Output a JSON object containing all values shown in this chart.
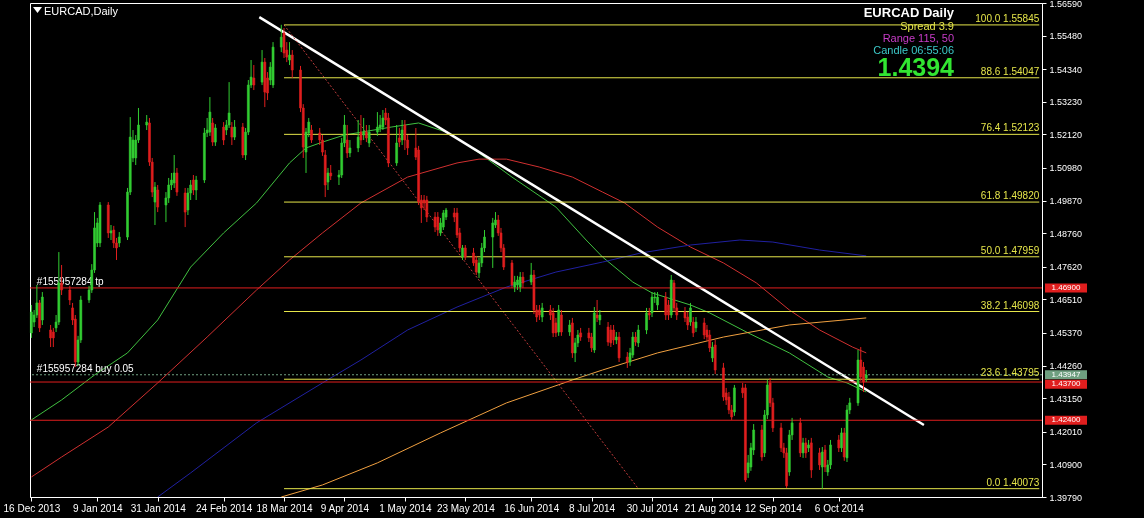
{
  "chart_data": {
    "type": "candlestick",
    "title": "EURCAD,Daily",
    "xlim": [
      "2013-12-15T12:00",
      "2014-12-19"
    ],
    "ylim": [
      1.3979,
      1.5659
    ],
    "xticks": [
      {
        "value": "2013-12-16",
        "label": "16 Dec 2013"
      },
      {
        "value": "2014-01-09",
        "label": "9 Jan 2014"
      },
      {
        "value": "2014-01-31",
        "label": "31 Jan 2014"
      },
      {
        "value": "2014-02-24",
        "label": "24 Feb 2014"
      },
      {
        "value": "2014-03-18",
        "label": "18 Mar 2014"
      },
      {
        "value": "2014-04-09",
        "label": "9 Apr 2014"
      },
      {
        "value": "2014-05-01",
        "label": "1 May 2014"
      },
      {
        "value": "2014-05-23",
        "label": "23 May 2014"
      },
      {
        "value": "2014-06-16",
        "label": "16 Jun 2014"
      },
      {
        "value": "2014-07-08",
        "label": "8 Jul 2014"
      },
      {
        "value": "2014-07-30",
        "label": "30 Jul 2014"
      },
      {
        "value": "2014-08-21",
        "label": "21 Aug 2014"
      },
      {
        "value": "2014-09-12",
        "label": "12 Sep 2014"
      },
      {
        "value": "2014-10-06",
        "label": "6 Oct 2014"
      }
    ],
    "yticks": [
      {
        "value": 1.5659,
        "label": "1.56590"
      },
      {
        "value": 1.5548,
        "label": "1.55480"
      },
      {
        "value": 1.5434,
        "label": "1.54340"
      },
      {
        "value": 1.5323,
        "label": "1.53230"
      },
      {
        "value": 1.5212,
        "label": "1.52120"
      },
      {
        "value": 1.5098,
        "label": "1.50980"
      },
      {
        "value": 1.4987,
        "label": "1.49870"
      },
      {
        "value": 1.4876,
        "label": "1.48760"
      },
      {
        "value": 1.4762,
        "label": "1.47620"
      },
      {
        "value": 1.4651,
        "label": "1.46510"
      },
      {
        "value": 1.4537,
        "label": "1.45370"
      },
      {
        "value": 1.4426,
        "label": "1.44260"
      },
      {
        "value": 1.4315,
        "label": "1.43150"
      },
      {
        "value": 1.4201,
        "label": "1.42010"
      },
      {
        "value": 1.409,
        "label": "1.40900"
      },
      {
        "value": 1.3979,
        "label": "1.39790"
      }
    ],
    "x": [
      "2013-12-16",
      "2013-12-17",
      "2013-12-18",
      "2013-12-19",
      "2013-12-20",
      "2013-12-23",
      "2013-12-24",
      "2013-12-25",
      "2013-12-26",
      "2013-12-27",
      "2013-12-30",
      "2013-12-31",
      "2014-01-01",
      "2014-01-02",
      "2014-01-03",
      "2014-01-06",
      "2014-01-07",
      "2014-01-08",
      "2014-01-09",
      "2014-01-10",
      "2014-01-13",
      "2014-01-14",
      "2014-01-15",
      "2014-01-16",
      "2014-01-17",
      "2014-01-20",
      "2014-01-21",
      "2014-01-22",
      "2014-01-23",
      "2014-01-24",
      "2014-01-27",
      "2014-01-28",
      "2014-01-29",
      "2014-01-30",
      "2014-01-31",
      "2014-02-03",
      "2014-02-04",
      "2014-02-05",
      "2014-02-06",
      "2014-02-07",
      "2014-02-10",
      "2014-02-11",
      "2014-02-12",
      "2014-02-13",
      "2014-02-14",
      "2014-02-17",
      "2014-02-18",
      "2014-02-19",
      "2014-02-20",
      "2014-02-21",
      "2014-02-24",
      "2014-02-25",
      "2014-02-26",
      "2014-02-27",
      "2014-02-28",
      "2014-03-03",
      "2014-03-04",
      "2014-03-05",
      "2014-03-06",
      "2014-03-07",
      "2014-03-10",
      "2014-03-11",
      "2014-03-12",
      "2014-03-13",
      "2014-03-14",
      "2014-03-17",
      "2014-03-18",
      "2014-03-19",
      "2014-03-20",
      "2014-03-21",
      "2014-03-24",
      "2014-03-25",
      "2014-03-26",
      "2014-03-27",
      "2014-03-28",
      "2014-03-31",
      "2014-04-01",
      "2014-04-02",
      "2014-04-03",
      "2014-04-04",
      "2014-04-07",
      "2014-04-08",
      "2014-04-09",
      "2014-04-10",
      "2014-04-11",
      "2014-04-14",
      "2014-04-15",
      "2014-04-16",
      "2014-04-17",
      "2014-04-18",
      "2014-04-21",
      "2014-04-22",
      "2014-04-23",
      "2014-04-24",
      "2014-04-25",
      "2014-04-28",
      "2014-04-29",
      "2014-04-30",
      "2014-05-01",
      "2014-05-02",
      "2014-05-05",
      "2014-05-06",
      "2014-05-07",
      "2014-05-08",
      "2014-05-09",
      "2014-05-12",
      "2014-05-13",
      "2014-05-14",
      "2014-05-15",
      "2014-05-16",
      "2014-05-19",
      "2014-05-20",
      "2014-05-21",
      "2014-05-22",
      "2014-05-23",
      "2014-05-26",
      "2014-05-27",
      "2014-05-28",
      "2014-05-29",
      "2014-05-30",
      "2014-06-02",
      "2014-06-03",
      "2014-06-04",
      "2014-06-05",
      "2014-06-06",
      "2014-06-09",
      "2014-06-10",
      "2014-06-11",
      "2014-06-12",
      "2014-06-13",
      "2014-06-16",
      "2014-06-17",
      "2014-06-18",
      "2014-06-19",
      "2014-06-20",
      "2014-06-23",
      "2014-06-24",
      "2014-06-25",
      "2014-06-26",
      "2014-06-27",
      "2014-06-30",
      "2014-07-01",
      "2014-07-02",
      "2014-07-03",
      "2014-07-04",
      "2014-07-07",
      "2014-07-08",
      "2014-07-09",
      "2014-07-10",
      "2014-07-11",
      "2014-07-14",
      "2014-07-15",
      "2014-07-16",
      "2014-07-17",
      "2014-07-18",
      "2014-07-21",
      "2014-07-22",
      "2014-07-23",
      "2014-07-24",
      "2014-07-25",
      "2014-07-28",
      "2014-07-29",
      "2014-07-30",
      "2014-07-31",
      "2014-08-01",
      "2014-08-04",
      "2014-08-05",
      "2014-08-06",
      "2014-08-07",
      "2014-08-08",
      "2014-08-11",
      "2014-08-12",
      "2014-08-13",
      "2014-08-14",
      "2014-08-15",
      "2014-08-18",
      "2014-08-19",
      "2014-08-20",
      "2014-08-21",
      "2014-08-22",
      "2014-08-25",
      "2014-08-26",
      "2014-08-27",
      "2014-08-28",
      "2014-08-29",
      "2014-09-01",
      "2014-09-02",
      "2014-09-03",
      "2014-09-04",
      "2014-09-05",
      "2014-09-08",
      "2014-09-09",
      "2014-09-10",
      "2014-09-11",
      "2014-09-12",
      "2014-09-15",
      "2014-09-16",
      "2014-09-17",
      "2014-09-18",
      "2014-09-19",
      "2014-09-22",
      "2014-09-23",
      "2014-09-24",
      "2014-09-25",
      "2014-09-26",
      "2014-09-29",
      "2014-09-30",
      "2014-10-01",
      "2014-10-02",
      "2014-10-03",
      "2014-10-06",
      "2014-10-07",
      "2014-10-08",
      "2014-10-09",
      "2014-10-10",
      "2014-10-13",
      "2014-10-14",
      "2014-10-15",
      "2014-10-16"
    ],
    "ohlc": [
      [
        1.4537,
        1.4632,
        1.452,
        1.4608
      ],
      [
        1.4574,
        1.4615,
        1.4557,
        1.4598
      ],
      [
        1.4598,
        1.47,
        1.4588,
        1.4639
      ],
      [
        1.4639,
        1.4649,
        1.454,
        1.4554
      ],
      [
        1.4581,
        1.4676,
        1.4564,
        1.4659
      ],
      [
        1.4547,
        1.4564,
        1.4489,
        1.452
      ],
      [
        1.454,
        1.4554,
        1.4489,
        1.452
      ],
      [
        1.4554,
        1.4598,
        1.454,
        1.4574
      ],
      [
        1.4574,
        1.4812,
        1.4564,
        1.4707
      ],
      [
        1.4707,
        1.4768,
        1.4666,
        1.4683
      ],
      [
        1.4683,
        1.4697,
        1.4632,
        1.4649
      ],
      [
        1.4622,
        1.4639,
        1.4564,
        1.4581
      ],
      [
        1.4584,
        1.4598,
        1.4421,
        1.4438
      ],
      [
        1.4438,
        1.4527,
        1.4425,
        1.4513
      ],
      [
        1.4513,
        1.4663,
        1.4503,
        1.4649
      ],
      [
        1.4649,
        1.4697,
        1.4639,
        1.4683
      ],
      [
        1.4683,
        1.4771,
        1.4673,
        1.4751
      ],
      [
        1.4751,
        1.4948,
        1.4741,
        1.4894
      ],
      [
        1.4843,
        1.4928,
        1.4829,
        1.4911
      ],
      [
        1.4843,
        1.4982,
        1.4829,
        1.4972
      ],
      [
        1.4972,
        1.4982,
        1.486,
        1.4877
      ],
      [
        1.4877,
        1.4904,
        1.4853,
        1.4884
      ],
      [
        1.4887,
        1.4901,
        1.4826,
        1.4843
      ],
      [
        1.4843,
        1.486,
        1.4785,
        1.4826
      ],
      [
        1.4843,
        1.488,
        1.4829,
        1.4863
      ],
      [
        1.4863,
        1.503,
        1.4853,
        1.5016
      ],
      [
        1.5016,
        1.5271,
        1.5006,
        1.5203
      ],
      [
        1.5132,
        1.5227,
        1.5118,
        1.5193
      ],
      [
        1.5132,
        1.521,
        1.5108,
        1.5193
      ],
      [
        1.5193,
        1.5302,
        1.5183,
        1.5244
      ],
      [
        1.5244,
        1.5278,
        1.5227,
        1.5254
      ],
      [
        1.5251,
        1.5268,
        1.5105,
        1.5118
      ],
      [
        1.5118,
        1.5132,
        1.4999,
        1.5016
      ],
      [
        1.4982,
        1.505,
        1.4904,
        1.5033
      ],
      [
        1.5023,
        1.504,
        1.4948,
        1.4965
      ],
      [
        1.4972,
        1.5016,
        1.4914,
        1.4996
      ],
      [
        1.4996,
        1.5064,
        1.4979,
        1.504
      ],
      [
        1.504,
        1.5081,
        1.5023,
        1.5057
      ],
      [
        1.5047,
        1.5142,
        1.503,
        1.5081
      ],
      [
        1.5081,
        1.5098,
        1.5003,
        1.5016
      ],
      [
        1.5013,
        1.503,
        1.4897,
        1.4948
      ],
      [
        1.4955,
        1.503,
        1.4938,
        1.5013
      ],
      [
        1.5013,
        1.5057,
        1.4989,
        1.504
      ],
      [
        1.5057,
        1.5074,
        1.5006,
        1.5023
      ],
      [
        1.5023,
        1.5071,
        1.4989,
        1.5057
      ],
      [
        1.5057,
        1.5234,
        1.5047,
        1.5217
      ],
      [
        1.5217,
        1.5268,
        1.5203,
        1.5227
      ],
      [
        1.522,
        1.5339,
        1.5207,
        1.5288
      ],
      [
        1.5251,
        1.5268,
        1.5173,
        1.5186
      ],
      [
        1.5186,
        1.5247,
        1.5173,
        1.5234
      ],
      [
        1.5237,
        1.5254,
        1.5176,
        1.5193
      ],
      [
        1.5227,
        1.5261,
        1.521,
        1.5244
      ],
      [
        1.5244,
        1.539,
        1.5234,
        1.5285
      ],
      [
        1.5237,
        1.5254,
        1.5176,
        1.5203
      ],
      [
        1.5203,
        1.5261,
        1.5193,
        1.5237
      ],
      [
        1.5237,
        1.5251,
        1.5132,
        1.5142
      ],
      [
        1.5142,
        1.5234,
        1.5125,
        1.522
      ],
      [
        1.522,
        1.5397,
        1.521,
        1.538
      ],
      [
        1.538,
        1.5465,
        1.537,
        1.5407
      ],
      [
        1.5404,
        1.5448,
        1.5363,
        1.538
      ],
      [
        1.539,
        1.5499,
        1.538,
        1.5458
      ],
      [
        1.5458,
        1.5472,
        1.5305,
        1.5356
      ],
      [
        1.5404,
        1.5424,
        1.5329,
        1.5353
      ],
      [
        1.5397,
        1.5458,
        1.538,
        1.5441
      ],
      [
        1.538,
        1.5526,
        1.537,
        1.5509
      ],
      [
        1.5509,
        1.5585,
        1.5492,
        1.5543
      ],
      [
        1.5557,
        1.5574,
        1.5472,
        1.5489
      ],
      [
        1.5499,
        1.5526,
        1.5458,
        1.5475
      ],
      [
        1.5465,
        1.5526,
        1.5448,
        1.5482
      ],
      [
        1.5482,
        1.5499,
        1.5404,
        1.5431
      ],
      [
        1.5431,
        1.5445,
        1.5288,
        1.5302
      ],
      [
        1.5302,
        1.5315,
        1.5132,
        1.5169
      ],
      [
        1.5152,
        1.5234,
        1.5081,
        1.522
      ],
      [
        1.5217,
        1.5268,
        1.5203,
        1.5254
      ],
      [
        1.5227,
        1.5244,
        1.5183,
        1.5193
      ],
      [
        1.5217,
        1.5234,
        1.5176,
        1.5193
      ],
      [
        1.5193,
        1.521,
        1.5139,
        1.5152
      ],
      [
        1.5142,
        1.5159,
        1.4999,
        1.504
      ],
      [
        1.505,
        1.5098,
        1.5023,
        1.5081
      ],
      [
        1.5081,
        1.5108,
        1.5057,
        1.5071
      ],
      [
        1.5067,
        1.5091,
        1.504,
        1.5074
      ],
      [
        1.5074,
        1.52,
        1.5064,
        1.5183
      ],
      [
        1.5183,
        1.5278,
        1.5169,
        1.5244
      ],
      [
        1.5193,
        1.5244,
        1.5132,
        1.5149
      ],
      [
        1.5149,
        1.5193,
        1.5135,
        1.5166
      ],
      [
        1.5166,
        1.5261,
        1.5152,
        1.5203
      ],
      [
        1.522,
        1.5278,
        1.5176,
        1.5193
      ],
      [
        1.521,
        1.5268,
        1.5193,
        1.522
      ],
      [
        1.522,
        1.5244,
        1.5186,
        1.52
      ],
      [
        1.5183,
        1.5244,
        1.5169,
        1.522
      ],
      [
        1.522,
        1.5288,
        1.5207,
        1.5237
      ],
      [
        1.5234,
        1.5278,
        1.522,
        1.5244
      ],
      [
        1.5237,
        1.5295,
        1.5227,
        1.5268
      ],
      [
        1.5285,
        1.5302,
        1.5244,
        1.5261
      ],
      [
        1.5268,
        1.5285,
        1.5101,
        1.5115
      ],
      [
        1.5115,
        1.5244,
        1.5105,
        1.5183
      ],
      [
        1.52,
        1.5234,
        1.5169,
        1.5186
      ],
      [
        1.5193,
        1.5261,
        1.5176,
        1.5227
      ],
      [
        1.5244,
        1.5261,
        1.5159,
        1.5193
      ],
      [
        1.5193,
        1.521,
        1.5142,
        1.5166
      ],
      [
        1.5166,
        1.5234,
        1.5125,
        1.5135
      ],
      [
        1.5159,
        1.5173,
        1.4972,
        1.4982
      ],
      [
        1.4989,
        1.5006,
        1.4911,
        1.4962
      ],
      [
        1.4989,
        1.5006,
        1.4955,
        1.4979
      ],
      [
        1.4989,
        1.5003,
        1.4914,
        1.4931
      ],
      [
        1.4931,
        1.4948,
        1.488,
        1.4897
      ],
      [
        1.4931,
        1.4948,
        1.4867,
        1.4887
      ],
      [
        1.4877,
        1.4928,
        1.4867,
        1.4911
      ],
      [
        1.4897,
        1.4955,
        1.4887,
        1.4945
      ],
      [
        1.4931,
        1.4962,
        1.4921,
        1.4955
      ],
      [
        1.4945,
        1.4962,
        1.4914,
        1.4931
      ],
      [
        1.4945,
        1.4962,
        1.486,
        1.487
      ],
      [
        1.4877,
        1.4894,
        1.4812,
        1.4826
      ],
      [
        1.4795,
        1.4836,
        1.4785,
        1.4826
      ],
      [
        1.4826,
        1.4836,
        1.4785,
        1.4795
      ],
      [
        1.4809,
        1.4826,
        1.4765,
        1.4775
      ],
      [
        1.4785,
        1.4799,
        1.4734,
        1.4744
      ],
      [
        1.4741,
        1.4792,
        1.4724,
        1.4775
      ],
      [
        1.4775,
        1.4843,
        1.4761,
        1.4826
      ],
      [
        1.4826,
        1.4887,
        1.4812,
        1.4863
      ],
      [
        1.4863,
        1.4928,
        1.4758,
        1.4911
      ],
      [
        1.4904,
        1.4948,
        1.4894,
        1.4921
      ],
      [
        1.4921,
        1.4938,
        1.4867,
        1.4877
      ],
      [
        1.4877,
        1.4894,
        1.4812,
        1.4826
      ],
      [
        1.4826,
        1.4839,
        1.4751,
        1.4761
      ],
      [
        1.4775,
        1.4785,
        1.469,
        1.47
      ],
      [
        1.4693,
        1.4731,
        1.4676,
        1.471
      ],
      [
        1.47,
        1.4731,
        1.4683,
        1.4717
      ],
      [
        1.4693,
        1.4744,
        1.4676,
        1.4727
      ],
      [
        1.4727,
        1.4744,
        1.469,
        1.4707
      ],
      [
        1.471,
        1.4775,
        1.47,
        1.4734
      ],
      [
        1.4734,
        1.4751,
        1.4601,
        1.4615
      ],
      [
        1.4615,
        1.4632,
        1.4574,
        1.4591
      ],
      [
        1.4615,
        1.4632,
        1.4581,
        1.4598
      ],
      [
        1.4591,
        1.4639,
        1.4574,
        1.4622
      ],
      [
        1.4615,
        1.4632,
        1.4581,
        1.4598
      ],
      [
        1.4605,
        1.4622,
        1.4523,
        1.4537
      ],
      [
        1.4571,
        1.4588,
        1.4523,
        1.4537
      ],
      [
        1.454,
        1.4632,
        1.4527,
        1.4615
      ],
      [
        1.4598,
        1.4615,
        1.4527,
        1.454
      ],
      [
        1.454,
        1.4581,
        1.4527,
        1.4564
      ],
      [
        1.4571,
        1.4588,
        1.4452,
        1.4469
      ],
      [
        1.4469,
        1.452,
        1.4438,
        1.4503
      ],
      [
        1.4503,
        1.4547,
        1.4489,
        1.453
      ],
      [
        1.4537,
        1.4554,
        1.451,
        1.4523
      ],
      [
        1.4537,
        1.4554,
        1.4506,
        1.452
      ],
      [
        1.4523,
        1.4537,
        1.4472,
        1.4486
      ],
      [
        1.4479,
        1.4625,
        1.4469,
        1.4605
      ],
      [
        1.4598,
        1.4649,
        1.4574,
        1.4588
      ],
      [
        1.4581,
        1.4615,
        1.4564,
        1.4598
      ],
      [
        1.4557,
        1.4574,
        1.4493,
        1.4506
      ],
      [
        1.4547,
        1.4564,
        1.4489,
        1.4503
      ],
      [
        1.4547,
        1.4564,
        1.4496,
        1.4513
      ],
      [
        1.4513,
        1.454,
        1.4499,
        1.4523
      ],
      [
        1.4523,
        1.454,
        1.4438,
        1.4452
      ],
      [
        1.4455,
        1.4472,
        1.4418,
        1.4438
      ],
      [
        1.4438,
        1.4486,
        1.4425,
        1.4469
      ],
      [
        1.4462,
        1.454,
        1.4452,
        1.4523
      ],
      [
        1.4523,
        1.454,
        1.4493,
        1.4506
      ],
      [
        1.4503,
        1.4564,
        1.4489,
        1.4547
      ],
      [
        1.4547,
        1.4622,
        1.4533,
        1.4605
      ],
      [
        1.4605,
        1.4622,
        1.4581,
        1.4598
      ],
      [
        1.4605,
        1.4676,
        1.4591,
        1.4659
      ],
      [
        1.4656,
        1.4676,
        1.4639,
        1.4659
      ],
      [
        1.4632,
        1.4676,
        1.4615,
        1.4659
      ],
      [
        1.4659,
        1.4676,
        1.4581,
        1.4598
      ],
      [
        1.4632,
        1.4649,
        1.4581,
        1.4598
      ],
      [
        1.4598,
        1.4734,
        1.4588,
        1.4717
      ],
      [
        1.4707,
        1.4717,
        1.4608,
        1.4622
      ],
      [
        1.4622,
        1.4639,
        1.4581,
        1.4598
      ],
      [
        1.4608,
        1.4625,
        1.4574,
        1.4588
      ],
      [
        1.4591,
        1.4608,
        1.4547,
        1.4564
      ],
      [
        1.4574,
        1.4639,
        1.4561,
        1.4622
      ],
      [
        1.4574,
        1.4591,
        1.4523,
        1.4537
      ],
      [
        1.4554,
        1.4591,
        1.454,
        1.4574
      ],
      [
        1.4571,
        1.4588,
        1.4516,
        1.453
      ],
      [
        1.4547,
        1.4564,
        1.451,
        1.4523
      ],
      [
        1.453,
        1.4547,
        1.4472,
        1.4486
      ],
      [
        1.4452,
        1.4506,
        1.4438,
        1.4489
      ],
      [
        1.4496,
        1.4513,
        1.4397,
        1.4411
      ],
      [
        1.4418,
        1.4435,
        1.4306,
        1.4319
      ],
      [
        1.4333,
        1.435,
        1.4292,
        1.4309
      ],
      [
        1.4319,
        1.4336,
        1.4261,
        1.4275
      ],
      [
        1.4275,
        1.4292,
        1.4241,
        1.4251
      ],
      [
        1.4268,
        1.436,
        1.4255,
        1.435
      ],
      [
        1.435,
        1.4367,
        1.4316,
        1.4333
      ],
      [
        1.435,
        1.4363,
        1.403,
        1.4037
      ],
      [
        1.4061,
        1.4122,
        1.4044,
        1.4095
      ],
      [
        1.4081,
        1.4163,
        1.4068,
        1.4146
      ],
      [
        1.4139,
        1.4227,
        1.4122,
        1.4207
      ],
      [
        1.4207,
        1.4224,
        1.4102,
        1.4115
      ],
      [
        1.4129,
        1.4275,
        1.4115,
        1.4258
      ],
      [
        1.4258,
        1.4377,
        1.4244,
        1.436
      ],
      [
        1.4367,
        1.4384,
        1.4285,
        1.4299
      ],
      [
        1.4299,
        1.4316,
        1.42,
        1.4214
      ],
      [
        1.4214,
        1.4231,
        1.4132,
        1.4146
      ],
      [
        1.4146,
        1.4163,
        1.4112,
        1.4129
      ],
      [
        1.4129,
        1.4146,
        1.401,
        1.4017
      ],
      [
        1.4064,
        1.4207,
        1.4051,
        1.419
      ],
      [
        1.419,
        1.4248,
        1.4173,
        1.4231
      ],
      [
        1.4231,
        1.4248,
        1.4115,
        1.4129
      ],
      [
        1.4129,
        1.418,
        1.4112,
        1.4163
      ],
      [
        1.4163,
        1.418,
        1.4112,
        1.4129
      ],
      [
        1.4146,
        1.4173,
        1.4132,
        1.4156
      ],
      [
        1.4163,
        1.418,
        1.4044,
        1.4071
      ],
      [
        1.4129,
        1.4146,
        1.4071,
        1.4088
      ],
      [
        1.4081,
        1.4149,
        1.4007,
        1.4132
      ],
      [
        1.4139,
        1.4156,
        1.4064,
        1.4081
      ],
      [
        1.4064,
        1.4105,
        1.4051,
        1.4088
      ],
      [
        1.4088,
        1.4173,
        1.4074,
        1.4156
      ],
      [
        1.4173,
        1.419,
        1.4132,
        1.4146
      ],
      [
        1.4146,
        1.4214,
        1.4132,
        1.4197
      ],
      [
        1.4197,
        1.4214,
        1.4102,
        1.4115
      ],
      [
        1.4112,
        1.4292,
        1.4098,
        1.4275
      ],
      [
        1.4275,
        1.4316,
        1.4261,
        1.4299
      ],
      [
        1.4299,
        1.4479,
        1.4289,
        1.4445
      ],
      [
        1.4445,
        1.4489,
        1.4374,
        1.4387
      ],
      [
        1.4421,
        1.4438,
        1.4336,
        1.437
      ],
      [
        1.4384,
        1.4411,
        1.437,
        1.4394
      ]
    ],
    "colors": [
      "#32cd32",
      "#32cd32",
      "#32cd32",
      "#e01e1e",
      "#32cd32",
      "#e01e1e",
      "#e01e1e",
      "#32cd32",
      "#32cd32",
      "#e01e1e",
      "#e01e1e",
      "#e01e1e",
      "#e01e1e",
      "#32cd32",
      "#32cd32",
      "#32cd32",
      "#32cd32",
      "#32cd32",
      "#32cd32",
      "#32cd32",
      "#e01e1e",
      "#32cd32",
      "#e01e1e",
      "#e01e1e",
      "#32cd32",
      "#32cd32",
      "#32cd32",
      "#32cd32",
      "#32cd32",
      "#32cd32",
      "#32cd32",
      "#e01e1e",
      "#e01e1e",
      "#32cd32",
      "#e01e1e",
      "#32cd32",
      "#32cd32",
      "#32cd32",
      "#32cd32",
      "#e01e1e",
      "#e01e1e",
      "#32cd32",
      "#32cd32",
      "#e01e1e",
      "#32cd32",
      "#32cd32",
      "#32cd32",
      "#32cd32",
      "#e01e1e",
      "#32cd32",
      "#e01e1e",
      "#32cd32",
      "#32cd32",
      "#e01e1e",
      "#32cd32",
      "#e01e1e",
      "#32cd32",
      "#32cd32",
      "#32cd32",
      "#e01e1e",
      "#32cd32",
      "#e01e1e",
      "#e01e1e",
      "#32cd32",
      "#32cd32",
      "#32cd32",
      "#e01e1e",
      "#e01e1e",
      "#32cd32",
      "#e01e1e",
      "#e01e1e",
      "#e01e1e",
      "#32cd32",
      "#32cd32",
      "#e01e1e",
      "#e01e1e",
      "#e01e1e",
      "#e01e1e",
      "#32cd32",
      "#e01e1e",
      "#32cd32",
      "#32cd32",
      "#32cd32",
      "#e01e1e",
      "#32cd32",
      "#32cd32",
      "#e01e1e",
      "#32cd32",
      "#e01e1e",
      "#32cd32",
      "#32cd32",
      "#32cd32",
      "#32cd32",
      "#e01e1e",
      "#e01e1e",
      "#32cd32",
      "#e01e1e",
      "#32cd32",
      "#e01e1e",
      "#e01e1e",
      "#e01e1e",
      "#e01e1e",
      "#e01e1e",
      "#e01e1e",
      "#e01e1e",
      "#e01e1e",
      "#e01e1e",
      "#32cd32",
      "#32cd32",
      "#32cd32",
      "#e01e1e",
      "#e01e1e",
      "#e01e1e",
      "#32cd32",
      "#e01e1e",
      "#e01e1e",
      "#e01e1e",
      "#32cd32",
      "#32cd32",
      "#32cd32",
      "#32cd32",
      "#32cd32",
      "#e01e1e",
      "#e01e1e",
      "#e01e1e",
      "#e01e1e",
      "#32cd32",
      "#32cd32",
      "#32cd32",
      "#e01e1e",
      "#32cd32",
      "#e01e1e",
      "#e01e1e",
      "#e01e1e",
      "#32cd32",
      "#e01e1e",
      "#e01e1e",
      "#e01e1e",
      "#32cd32",
      "#e01e1e",
      "#32cd32",
      "#e01e1e",
      "#32cd32",
      "#32cd32",
      "#e01e1e",
      "#e01e1e",
      "#e01e1e",
      "#32cd32",
      "#e01e1e",
      "#32cd32",
      "#e01e1e",
      "#e01e1e",
      "#e01e1e",
      "#32cd32",
      "#e01e1e",
      "#e01e1e",
      "#32cd32",
      "#32cd32",
      "#e01e1e",
      "#32cd32",
      "#32cd32",
      "#e01e1e",
      "#32cd32",
      "#32cd32",
      "#32cd32",
      "#e01e1e",
      "#e01e1e",
      "#32cd32",
      "#e01e1e",
      "#e01e1e",
      "#e01e1e",
      "#e01e1e",
      "#32cd32",
      "#e01e1e",
      "#32cd32",
      "#e01e1e",
      "#e01e1e",
      "#e01e1e",
      "#32cd32",
      "#e01e1e",
      "#e01e1e",
      "#e01e1e",
      "#e01e1e",
      "#e01e1e",
      "#32cd32",
      "#e01e1e",
      "#e01e1e",
      "#32cd32",
      "#32cd32",
      "#32cd32",
      "#e01e1e",
      "#32cd32",
      "#32cd32",
      "#e01e1e",
      "#e01e1e",
      "#e01e1e",
      "#e01e1e",
      "#e01e1e",
      "#32cd32",
      "#32cd32",
      "#e01e1e",
      "#32cd32",
      "#e01e1e",
      "#32cd32",
      "#e01e1e",
      "#e01e1e",
      "#32cd32",
      "#e01e1e",
      "#32cd32",
      "#32cd32",
      "#e01e1e",
      "#32cd32",
      "#e01e1e",
      "#32cd32",
      "#32cd32",
      "#32cd32",
      "#e01e1e",
      "#e01e1e",
      "#32cd32"
    ],
    "series": [
      {
        "type": "line",
        "color": "#40c040",
        "x": [
          "2013-12-16",
          "2013-12-27",
          "2014-01-08",
          "2014-01-20",
          "2014-01-31",
          "2014-02-12",
          "2014-02-24",
          "2014-03-08",
          "2014-03-20",
          "2014-03-26",
          "2014-04-01",
          "2014-04-09",
          "2014-04-26",
          "2014-05-06",
          "2014-05-17",
          "2014-05-28",
          "2014-06-09",
          "2014-06-25",
          "2014-07-06",
          "2014-07-12",
          "2014-07-23",
          "2014-07-30",
          "2014-08-13",
          "2014-08-20",
          "2014-09-03",
          "2014-09-18",
          "2014-10-02",
          "2014-10-09",
          "2014-10-16"
        ],
        "values": [
          1.4241,
          1.4309,
          1.4394,
          1.4469,
          1.4581,
          1.4761,
          1.4877,
          1.4979,
          1.5115,
          1.5166,
          1.5186,
          1.521,
          1.5237,
          1.5251,
          1.5217,
          1.5149,
          1.5067,
          1.4965,
          1.4853,
          1.4795,
          1.471,
          1.4673,
          1.4632,
          1.4605,
          1.4537,
          1.4469,
          1.4387,
          1.4367,
          1.4336
        ]
      },
      {
        "type": "line",
        "color": "#d03030",
        "x": [
          "2013-12-16",
          "2013-12-27",
          "2014-01-13",
          "2014-01-31",
          "2014-02-18",
          "2014-03-08",
          "2014-03-20",
          "2014-04-01",
          "2014-04-15",
          "2014-05-02",
          "2014-05-20",
          "2014-05-28",
          "2014-06-07",
          "2014-06-19",
          "2014-07-01",
          "2014-07-12",
          "2014-07-20",
          "2014-08-01",
          "2014-08-13",
          "2014-08-25",
          "2014-09-06",
          "2014-09-18",
          "2014-09-29",
          "2014-10-11",
          "2014-10-16"
        ],
        "values": [
          1.4047,
          1.4115,
          1.4217,
          1.4367,
          1.4523,
          1.4683,
          1.4785,
          1.4877,
          1.4979,
          1.5067,
          1.5115,
          1.5128,
          1.5128,
          1.5101,
          1.5067,
          1.5016,
          1.4979,
          1.4897,
          1.4829,
          1.4775,
          1.4707,
          1.4615,
          1.4547,
          1.4489,
          1.4469
        ]
      },
      {
        "type": "line",
        "color": "#2020a0",
        "x": [
          "2014-01-31",
          "2014-02-12",
          "2014-03-08",
          "2014-04-01",
          "2014-04-15",
          "2014-05-02",
          "2014-05-20",
          "2014-06-07",
          "2014-06-25",
          "2014-07-12",
          "2014-07-26",
          "2014-08-13",
          "2014-08-31",
          "2014-09-12",
          "2014-09-29",
          "2014-10-16"
        ],
        "values": [
          1.3979,
          1.4061,
          1.4231,
          1.4367,
          1.4445,
          1.4547,
          1.4625,
          1.4693,
          1.4744,
          1.4778,
          1.4809,
          1.4836,
          1.4853,
          1.4846,
          1.4819,
          1.4799
        ]
      },
      {
        "type": "line",
        "color": "#f0a040",
        "x": [
          "2014-03-17",
          "2014-04-01",
          "2014-04-21",
          "2014-05-14",
          "2014-06-07",
          "2014-07-01",
          "2014-07-12",
          "2014-08-01",
          "2014-08-25",
          "2014-09-18",
          "2014-10-16"
        ],
        "values": [
          1.3979,
          1.402,
          1.4095,
          1.4197,
          1.4299,
          1.4377,
          1.4411,
          1.4469,
          1.4523,
          1.4564,
          1.4588
        ]
      },
      {
        "type": "line",
        "color": "#ffffff",
        "x": [
          "2014-03-09",
          "2014-11-06"
        ],
        "values": [
          1.5611,
          1.4224
        ]
      },
      {
        "type": "line",
        "color": "#c03c3c",
        "line_style": "dashed",
        "x": [
          "2014-03-18",
          "2014-07-25"
        ],
        "values": [
          1.55845,
          1.40073
        ]
      },
      {
        "type": "line",
        "color": "#e6e64a",
        "x": [
          "2014-03-18",
          "2014-12-18"
        ],
        "values": [
          1.55845,
          1.55845
        ]
      },
      {
        "type": "line",
        "color": "#e6e64a",
        "x": [
          "2014-03-18",
          "2014-12-18"
        ],
        "values": [
          1.54047,
          1.54047
        ]
      },
      {
        "type": "line",
        "color": "#e6e64a",
        "x": [
          "2014-03-18",
          "2014-12-18"
        ],
        "values": [
          1.52123,
          1.52123
        ]
      },
      {
        "type": "line",
        "color": "#e6e64a",
        "x": [
          "2014-03-18",
          "2014-12-18"
        ],
        "values": [
          1.4982,
          1.4982
        ]
      },
      {
        "type": "line",
        "color": "#e6e64a",
        "x": [
          "2014-03-18",
          "2014-12-18"
        ],
        "values": [
          1.47959,
          1.47959
        ]
      },
      {
        "type": "line",
        "color": "#e6e64a",
        "x": [
          "2014-03-18",
          "2014-12-18"
        ],
        "values": [
          1.46098,
          1.46098
        ]
      },
      {
        "type": "line",
        "color": "#e6e64a",
        "x": [
          "2014-03-18",
          "2014-12-18"
        ],
        "values": [
          1.43795,
          1.43795
        ]
      },
      {
        "type": "line",
        "color": "#e6e64a",
        "x": [
          "2014-03-18",
          "2014-12-18"
        ],
        "values": [
          1.40073,
          1.40073
        ]
      }
    ],
    "ref_lines": [
      {
        "axis": "y",
        "value": 1.469,
        "label": "1.46900",
        "color": "#e01e1e"
      },
      {
        "axis": "y",
        "value": 1.43947,
        "label": "1.43947",
        "color": "#6f9f80",
        "line_style": "dashed"
      },
      {
        "axis": "y",
        "value": 1.437,
        "label": "1.43700",
        "color": "#e01e1e"
      },
      {
        "axis": "y",
        "value": 1.424,
        "label": "1.42400",
        "color": "#e01e1e"
      }
    ],
    "annotations": [
      "EURCAD Daily",
      "Spread 3.9",
      "Range 115, 50",
      "Candle 06:55:06",
      "1.4394",
      {
        "text": "#155957284 tp",
        "x": "2013-12-18",
        "y": 1.469
      },
      {
        "text": "#155957284 buy 0.05",
        "x": "2013-12-18",
        "y": 1.43947
      },
      {
        "text": "100.0 1.55845",
        "x": "2014-12-18",
        "y": 1.55845
      },
      {
        "text": "88.6 1.54047",
        "x": "2014-12-18",
        "y": 1.54047
      },
      {
        "text": "76.4 1.52123",
        "x": "2014-12-18",
        "y": 1.52123
      },
      {
        "text": "61.8 1.49820",
        "x": "2014-12-18",
        "y": 1.4982
      },
      {
        "text": "50.0 1.47959",
        "x": "2014-12-18",
        "y": 1.47959
      },
      {
        "text": "38.2 1.46098",
        "x": "2014-12-18",
        "y": 1.46098
      },
      {
        "text": "23.6 1.43795",
        "x": "2014-12-18",
        "y": 1.43795
      },
      {
        "text": "0.0 1.40073",
        "x": "2014-12-18",
        "y": 1.40073
      }
    ]
  }
}
